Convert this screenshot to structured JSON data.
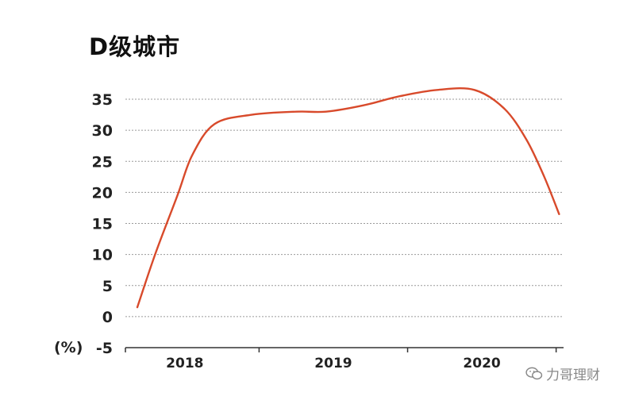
{
  "chart_data": {
    "type": "line",
    "title": "D级城市",
    "ylabel": "(%)",
    "xlabel": "",
    "ylim": [
      -5,
      35
    ],
    "yticks": [
      35,
      30,
      25,
      20,
      15,
      10,
      5,
      0,
      -5
    ],
    "grid": true,
    "xlim": [
      2017.6,
      2020.55
    ],
    "xticks": [
      2018,
      2019,
      2020
    ],
    "x_tick_labels": [
      "2018",
      "2019",
      "2020"
    ],
    "series": [
      {
        "color": "#d84a2b",
        "x": [
          2017.68,
          2017.8,
          2017.95,
          2018.05,
          2018.2,
          2018.45,
          2018.75,
          2018.95,
          2019.2,
          2019.45,
          2019.7,
          2019.95,
          2020.15,
          2020.3,
          2020.42,
          2020.52
        ],
        "y": [
          1.5,
          10,
          19.5,
          26,
          31,
          32.5,
          33,
          33,
          34,
          35.5,
          36.5,
          36.5,
          33.5,
          28.5,
          22.5,
          16.5
        ]
      }
    ]
  },
  "watermark": {
    "text": "力哥理财",
    "icon": "wechat-icon"
  }
}
